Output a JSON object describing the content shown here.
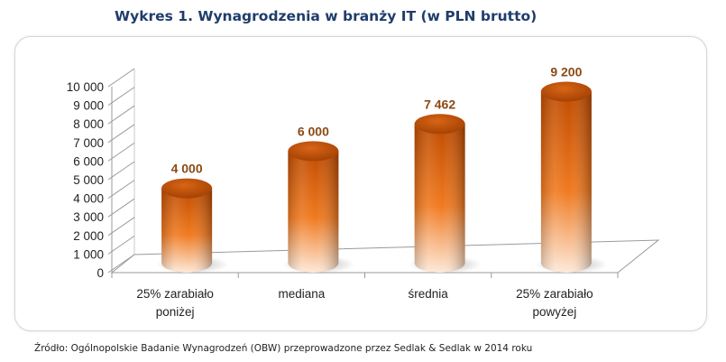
{
  "title": "Wykres 1. Wynagrodzenia w branży IT (w PLN brutto)",
  "source": "Źródło: Ogólnopolskie Badanie Wynagrodzeń (OBW) przeprowadzone przez Sedlak & Sedlak w 2014 roku",
  "chart_data": {
    "type": "bar",
    "title": "Wykres 1. Wynagrodzenia w branży IT (w PLN brutto)",
    "categories": [
      [
        "25% zarabiało",
        "poniżej"
      ],
      [
        "mediana"
      ],
      [
        "średnia"
      ],
      [
        "25% zarabiało",
        "powyżej"
      ]
    ],
    "values": [
      4000,
      6000,
      7462,
      9200
    ],
    "value_labels": [
      "4 000",
      "6 000",
      "7 462",
      "9 200"
    ],
    "y_ticks": [
      "0",
      "1 000",
      "2 000",
      "3 000",
      "4 000",
      "5 000",
      "6 000",
      "7 000",
      "8 000",
      "9 000",
      "10 000"
    ],
    "ylim": [
      0,
      10000
    ],
    "xlabel": "",
    "ylabel": "",
    "grid": false,
    "legend": "none",
    "bar_style": "3d-cylinder",
    "colors": {
      "bar_dark": "#c44f00",
      "bar_mid": "#ee7a1f",
      "bar_light": "#fde9d9",
      "label": "#8a4a14",
      "axis": "#9a9a9a"
    }
  }
}
